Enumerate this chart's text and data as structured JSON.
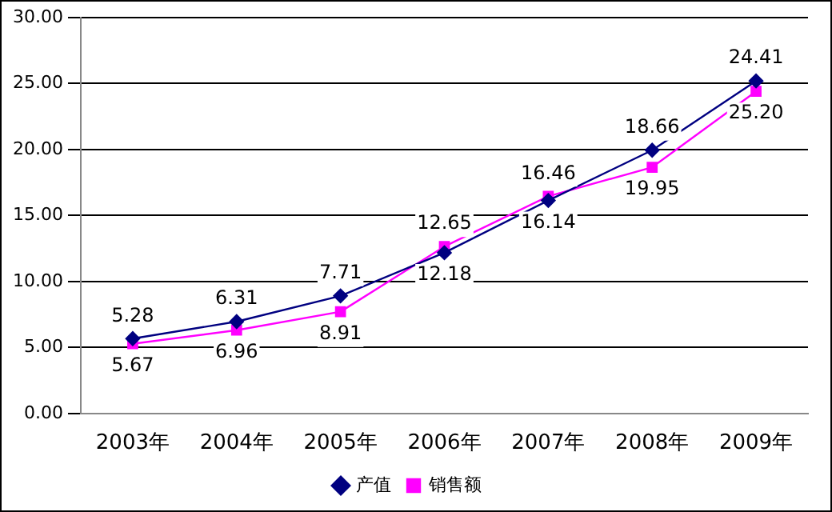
{
  "chart_data": {
    "type": "line",
    "categories": [
      "2003年",
      "2004年",
      "2005年",
      "2006年",
      "2007年",
      "2008年",
      "2009年"
    ],
    "series": [
      {
        "name": "产值",
        "color": "#000080",
        "marker": "diamond",
        "values": [
          5.67,
          6.96,
          8.91,
          12.18,
          16.14,
          19.95,
          25.2
        ],
        "value_labels": [
          "5.67",
          "6.96",
          "8.91",
          "12.18",
          "16.14",
          "19.95",
          "25.20"
        ]
      },
      {
        "name": "销售额",
        "color": "#ff00ff",
        "marker": "square",
        "values": [
          5.28,
          6.31,
          7.71,
          12.65,
          16.46,
          18.66,
          24.41
        ],
        "value_labels": [
          "5.28",
          "6.31",
          "7.71",
          "12.65",
          "16.46",
          "18.66",
          "24.41"
        ]
      }
    ],
    "ylim": [
      0,
      30
    ],
    "yticks": [
      {
        "value": 0,
        "label": "0.00"
      },
      {
        "value": 5,
        "label": "5.00"
      },
      {
        "value": 10,
        "label": "10.00"
      },
      {
        "value": 15,
        "label": "15.00"
      },
      {
        "value": 20,
        "label": "20.00"
      },
      {
        "value": 25,
        "label": "25.00"
      },
      {
        "value": 30,
        "label": "30.00"
      }
    ],
    "grid": "y",
    "legend": "bottom"
  }
}
